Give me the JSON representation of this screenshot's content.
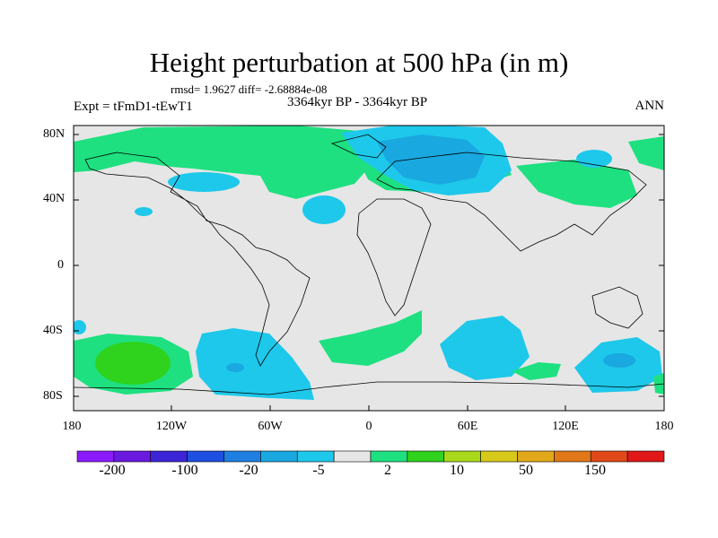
{
  "title": "Height perturbation at 500 hPa (in m)",
  "stats": "rmsd= 1.9627 diff= -2.68884e-08",
  "period": "3364kyr BP - 3364kyr BP",
  "experiment": "Expt = tFmD1-tEwT1",
  "season": "ANN",
  "lat_labels": [
    "80N",
    "40N",
    "0",
    "40S",
    "80S"
  ],
  "lon_labels": [
    "180",
    "120W",
    "60W",
    "0",
    "60E",
    "120E",
    "180"
  ],
  "colorbar": {
    "labels": [
      "-200",
      "-100",
      "-20",
      "-5",
      "2",
      "10",
      "50",
      "150"
    ],
    "colors": [
      "#8c1aff",
      "#6a1adf",
      "#3c25d6",
      "#1f4fe0",
      "#1f7fe0",
      "#1aa8e0",
      "#1ec8ea",
      "#e6e6e6",
      "#1ee080",
      "#2fd21c",
      "#a8d81a",
      "#d8c81a",
      "#e0a81a",
      "#e0781a",
      "#e0481a",
      "#e0181a"
    ]
  },
  "field_colors": {
    "background": "#e6e6e6",
    "green": "#1ee080",
    "cyan": "#1ec8ea",
    "blue": "#1aa8e0",
    "darkblue": "#1f7fe0",
    "lightgreen": "#2fd21c"
  }
}
